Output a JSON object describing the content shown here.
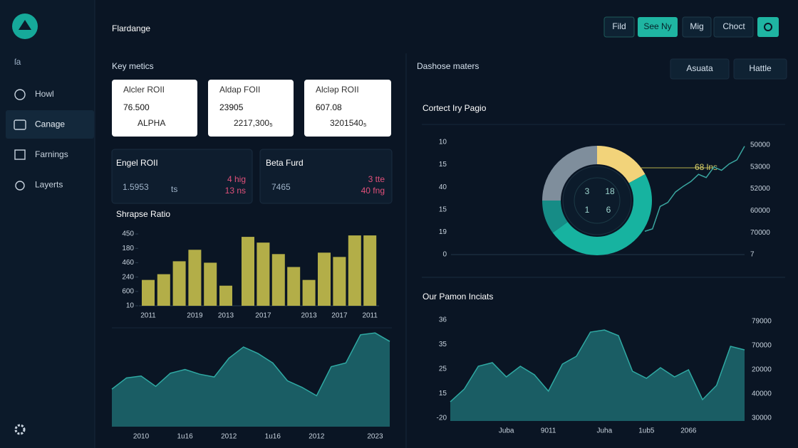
{
  "sidebar": {
    "brand": "ſa",
    "nav": [
      "Howl",
      "Canage",
      "Farnings",
      "Layerts"
    ],
    "active": 1
  },
  "header": {
    "title": "Flardange",
    "buttons": [
      "Fild",
      "See Ny",
      "Mig",
      "Choct"
    ]
  },
  "key_metrics": {
    "title": "Key metics",
    "cards": [
      {
        "label": "Alcler ROII",
        "value": "76.500",
        "sub": "ALPHA"
      },
      {
        "label": "Aldap FOII",
        "value": "23905",
        "sub": "2217,300₅"
      },
      {
        "label": "Alcləp ROII",
        "value": "607.08",
        "sub": "3201540₅"
      }
    ]
  },
  "funds": [
    {
      "label": "Engel ROII",
      "value": "1.5953",
      "unit": "ts",
      "notes": [
        "4 hig",
        "13 ns"
      ]
    },
    {
      "label": "Beta Furd",
      "value": "7465",
      "notes": [
        "3 tte",
        "40 fng"
      ]
    }
  ],
  "panel": {
    "title": "Dashose maters",
    "dropdowns": [
      "Asuata",
      "Hattle"
    ]
  },
  "chart_data": [
    {
      "type": "bar",
      "title": "Shrapse Ratio",
      "color": "#b3ae48",
      "categories": [
        "2011",
        null,
        null,
        "2019",
        null,
        "2013",
        null,
        "2017",
        null,
        null,
        "2013",
        null,
        "2017",
        null,
        "2011"
      ],
      "values": [
        1.8,
        2.2,
        3.1,
        3.9,
        3.0,
        1.4,
        4.8,
        4.4,
        3.6,
        2.7,
        1.8,
        3.7,
        3.4,
        4.9,
        4.9
      ],
      "ylim": [
        0,
        5.2
      ],
      "yticks": [
        {
          "value": 5,
          "label": "450"
        },
        {
          "value": 4,
          "label": "180"
        },
        {
          "value": 3,
          "label": "460"
        },
        {
          "value": 2,
          "label": "240"
        },
        {
          "value": 1,
          "label": "600"
        },
        {
          "value": 0,
          "label": "10"
        }
      ]
    },
    {
      "type": "area",
      "color": "#1d6a70",
      "categories": [
        null,
        null,
        "2010",
        null,
        null,
        "1u16",
        null,
        null,
        "2012",
        null,
        null,
        "1u16",
        null,
        null,
        "2012",
        null,
        null,
        null,
        "2023",
        null
      ],
      "values": [
        40,
        52,
        54,
        43,
        57,
        61,
        56,
        53,
        73,
        85,
        78,
        68,
        49,
        42,
        33,
        64,
        68,
        98,
        100,
        91
      ],
      "ylim": [
        0,
        110
      ]
    },
    {
      "type": "donut",
      "title": "Cortect Iry Pagio",
      "values": [
        17,
        48,
        10,
        25
      ],
      "colors": [
        "#f2d37a",
        "#17b3a0",
        "#168c86",
        "#7f8e9c"
      ],
      "center_labels": [
        "3",
        "18",
        "1",
        "6"
      ],
      "annotation": "68 lns",
      "left_labels": [
        "10",
        "15",
        "40",
        "15",
        "19",
        "0"
      ],
      "right_labels": [
        "50000",
        "53000",
        "52000",
        "60000",
        "70000",
        "7"
      ],
      "line": {
        "values": [
          29,
          32,
          60,
          65,
          78,
          85,
          91,
          100,
          96,
          109,
          105,
          113,
          118,
          135
        ],
        "ylim": [
          0,
          140
        ],
        "color": "#3aa6a0"
      }
    },
    {
      "type": "area",
      "title": "Our Pamon Inciats",
      "color": "#1d6a70",
      "categories": [
        null,
        null,
        null,
        null,
        "Juba",
        null,
        null,
        "9011",
        null,
        null,
        null,
        "Juha",
        null,
        null,
        "1ub5",
        null,
        null,
        "2066",
        null,
        null,
        null,
        null
      ],
      "values": [
        27,
        45,
        77,
        82,
        62,
        77,
        65,
        42,
        80,
        91,
        125,
        128,
        120,
        70,
        60,
        75,
        62,
        72,
        30,
        50,
        105,
        100
      ],
      "ylim": [
        0,
        140
      ],
      "left_labels": [
        "36",
        "35",
        "25",
        "15",
        "-20"
      ],
      "right_labels": [
        "79000",
        "70000",
        "20000",
        "40000",
        "30000"
      ]
    }
  ]
}
